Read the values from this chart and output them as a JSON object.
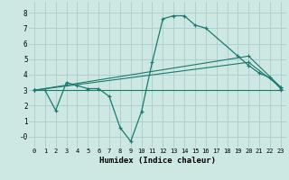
{
  "xlabel": "Humidex (Indice chaleur)",
  "bg_color": "#cde8e2",
  "grid_color": "#aacccc",
  "line_color": "#1a7a6e",
  "xlim": [
    -0.5,
    23.5
  ],
  "ylim": [
    -0.7,
    8.7
  ],
  "xtick_labels": [
    "0",
    "1",
    "2",
    "3",
    "4",
    "5",
    "6",
    "7",
    "8",
    "9",
    "10",
    "11",
    "12",
    "13",
    "14",
    "15",
    "16",
    "17",
    "18",
    "19",
    "20",
    "21",
    "22",
    "23"
  ],
  "ytick_labels": [
    "8",
    "7",
    "6",
    "5",
    "4",
    "3",
    "2",
    "1",
    "-0"
  ],
  "ytick_vals": [
    8,
    7,
    6,
    5,
    4,
    3,
    2,
    1,
    0
  ],
  "lines": [
    {
      "x": [
        0,
        1,
        2,
        3,
        4,
        5,
        6,
        7,
        8,
        9,
        10,
        11,
        12,
        13,
        14,
        15,
        16,
        19,
        20,
        21,
        22,
        23
      ],
      "y": [
        3.0,
        3.0,
        1.7,
        3.5,
        3.3,
        3.1,
        3.1,
        2.6,
        0.6,
        -0.3,
        1.6,
        4.8,
        7.6,
        7.8,
        7.8,
        7.2,
        7.0,
        5.2,
        4.6,
        4.1,
        3.8,
        3.1
      ]
    },
    {
      "x": [
        0,
        23
      ],
      "y": [
        3.0,
        3.0
      ]
    },
    {
      "x": [
        0,
        20,
        23
      ],
      "y": [
        3.0,
        5.2,
        3.2
      ]
    },
    {
      "x": [
        0,
        20,
        23
      ],
      "y": [
        3.0,
        4.8,
        3.2
      ]
    }
  ]
}
